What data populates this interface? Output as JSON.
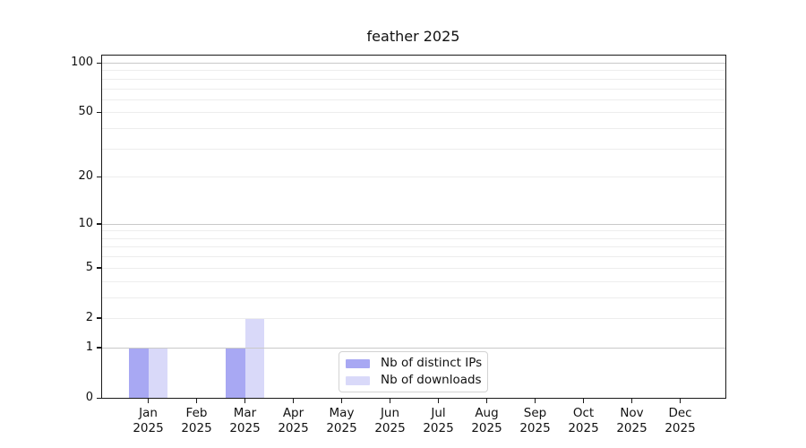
{
  "title": "feather 2025",
  "chart_data": {
    "type": "bar",
    "title": "feather 2025",
    "categories": [
      {
        "month": "Jan",
        "year": "2025"
      },
      {
        "month": "Feb",
        "year": "2025"
      },
      {
        "month": "Mar",
        "year": "2025"
      },
      {
        "month": "Apr",
        "year": "2025"
      },
      {
        "month": "May",
        "year": "2025"
      },
      {
        "month": "Jun",
        "year": "2025"
      },
      {
        "month": "Jul",
        "year": "2025"
      },
      {
        "month": "Aug",
        "year": "2025"
      },
      {
        "month": "Sep",
        "year": "2025"
      },
      {
        "month": "Oct",
        "year": "2025"
      },
      {
        "month": "Nov",
        "year": "2025"
      },
      {
        "month": "Dec",
        "year": "2025"
      }
    ],
    "series": [
      {
        "name": "Nb of distinct IPs",
        "color": "#a8a8f3",
        "values": [
          1,
          0,
          1,
          0,
          0,
          0,
          0,
          0,
          0,
          0,
          0,
          0
        ]
      },
      {
        "name": "Nb of downloads",
        "color": "#d9d9f9",
        "values": [
          1,
          0,
          2,
          0,
          0,
          0,
          0,
          0,
          0,
          0,
          0,
          0
        ]
      }
    ],
    "xlabel": "",
    "ylabel": "",
    "yscale": "log1p",
    "ylim": [
      0,
      113
    ],
    "yticks": [
      0,
      1,
      2,
      5,
      10,
      20,
      50,
      100
    ],
    "grid": {
      "major": [
        1,
        10,
        100
      ],
      "minor": [
        2,
        3,
        4,
        5,
        6,
        7,
        8,
        9,
        20,
        30,
        40,
        50,
        60,
        70,
        80,
        90
      ]
    },
    "legend_position": "bottom-center"
  },
  "colors": {
    "bar_distinct_ips": "#a8a8f3",
    "bar_downloads": "#d9d9f9",
    "grid_major": "#c9c9c9",
    "grid_minor": "#ededed",
    "spine": "#1a1a1a",
    "background": "#ffffff",
    "legend_border": "#d3d3d3"
  }
}
